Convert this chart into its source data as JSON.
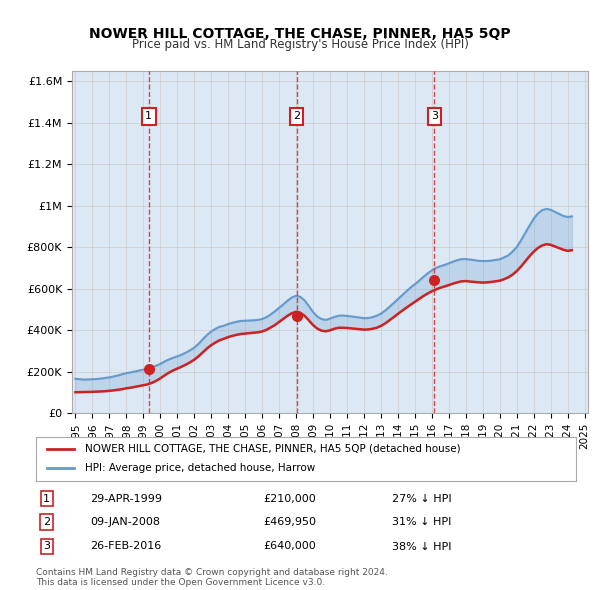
{
  "title": "NOWER HILL COTTAGE, THE CHASE, PINNER, HA5 5QP",
  "subtitle": "Price paid vs. HM Land Registry's House Price Index (HPI)",
  "background_color": "#dce9f5",
  "plot_bg_color": "#dce9f5",
  "hpi_color": "#6699cc",
  "price_color": "#cc2222",
  "transactions": [
    {
      "num": 1,
      "date_label": "29-APR-1999",
      "year": 1999.32,
      "price": 210000,
      "hpi_pct": "27% ↓ HPI"
    },
    {
      "num": 2,
      "date_label": "09-JAN-2008",
      "year": 2008.03,
      "price": 469950,
      "hpi_pct": "31% ↓ HPI"
    },
    {
      "num": 3,
      "date_label": "26-FEB-2016",
      "year": 2016.15,
      "price": 640000,
      "hpi_pct": "38% ↓ HPI"
    }
  ],
  "hpi_years": [
    1995.0,
    1995.25,
    1995.5,
    1995.75,
    1996.0,
    1996.25,
    1996.5,
    1996.75,
    1997.0,
    1997.25,
    1997.5,
    1997.75,
    1998.0,
    1998.25,
    1998.5,
    1998.75,
    1999.0,
    1999.25,
    1999.5,
    1999.75,
    2000.0,
    2000.25,
    2000.5,
    2000.75,
    2001.0,
    2001.25,
    2001.5,
    2001.75,
    2002.0,
    2002.25,
    2002.5,
    2002.75,
    2003.0,
    2003.25,
    2003.5,
    2003.75,
    2004.0,
    2004.25,
    2004.5,
    2004.75,
    2005.0,
    2005.25,
    2005.5,
    2005.75,
    2006.0,
    2006.25,
    2006.5,
    2006.75,
    2007.0,
    2007.25,
    2007.5,
    2007.75,
    2008.0,
    2008.25,
    2008.5,
    2008.75,
    2009.0,
    2009.25,
    2009.5,
    2009.75,
    2010.0,
    2010.25,
    2010.5,
    2010.75,
    2011.0,
    2011.25,
    2011.5,
    2011.75,
    2012.0,
    2012.25,
    2012.5,
    2012.75,
    2013.0,
    2013.25,
    2013.5,
    2013.75,
    2014.0,
    2014.25,
    2014.5,
    2014.75,
    2015.0,
    2015.25,
    2015.5,
    2015.75,
    2016.0,
    2016.25,
    2016.5,
    2016.75,
    2017.0,
    2017.25,
    2017.5,
    2017.75,
    2018.0,
    2018.25,
    2018.5,
    2018.75,
    2019.0,
    2019.25,
    2019.5,
    2019.75,
    2020.0,
    2020.25,
    2020.5,
    2020.75,
    2021.0,
    2021.25,
    2021.5,
    2021.75,
    2022.0,
    2022.25,
    2022.5,
    2022.75,
    2023.0,
    2023.25,
    2023.5,
    2023.75,
    2024.0,
    2024.25
  ],
  "hpi_values": [
    165000,
    163000,
    161000,
    162000,
    163000,
    164000,
    166000,
    169000,
    172000,
    176000,
    181000,
    187000,
    192000,
    196000,
    200000,
    205000,
    209000,
    213000,
    220000,
    228000,
    237000,
    248000,
    258000,
    266000,
    273000,
    281000,
    291000,
    302000,
    315000,
    333000,
    355000,
    376000,
    393000,
    406000,
    416000,
    421000,
    429000,
    435000,
    440000,
    444000,
    445000,
    446000,
    447000,
    449000,
    453000,
    462000,
    475000,
    490000,
    507000,
    524000,
    542000,
    557000,
    565000,
    560000,
    543000,
    516000,
    487000,
    465000,
    453000,
    449000,
    455000,
    463000,
    469000,
    470000,
    468000,
    466000,
    463000,
    460000,
    457000,
    458000,
    462000,
    469000,
    479000,
    494000,
    512000,
    530000,
    549000,
    568000,
    587000,
    605000,
    621000,
    638000,
    656000,
    673000,
    688000,
    700000,
    708000,
    714000,
    722000,
    730000,
    737000,
    742000,
    742000,
    740000,
    737000,
    734000,
    733000,
    733000,
    735000,
    738000,
    741000,
    750000,
    760000,
    778000,
    800000,
    832000,
    868000,
    903000,
    937000,
    962000,
    978000,
    984000,
    980000,
    970000,
    960000,
    950000,
    945000,
    948000
  ],
  "price_years": [
    1995.0,
    1995.25,
    1995.5,
    1995.75,
    1996.0,
    1996.25,
    1996.5,
    1996.75,
    1997.0,
    1997.25,
    1997.5,
    1997.75,
    1998.0,
    1998.25,
    1998.5,
    1998.75,
    1999.0,
    1999.25,
    1999.5,
    1999.75,
    2000.0,
    2000.25,
    2000.5,
    2000.75,
    2001.0,
    2001.25,
    2001.5,
    2001.75,
    2002.0,
    2002.25,
    2002.5,
    2002.75,
    2003.0,
    2003.25,
    2003.5,
    2003.75,
    2004.0,
    2004.25,
    2004.5,
    2004.75,
    2005.0,
    2005.25,
    2005.5,
    2005.75,
    2006.0,
    2006.25,
    2006.5,
    2006.75,
    2007.0,
    2007.25,
    2007.5,
    2007.75,
    2008.0,
    2008.25,
    2008.5,
    2008.75,
    2009.0,
    2009.25,
    2009.5,
    2009.75,
    2010.0,
    2010.25,
    2010.5,
    2010.75,
    2011.0,
    2011.25,
    2011.5,
    2011.75,
    2012.0,
    2012.25,
    2012.5,
    2012.75,
    2013.0,
    2013.25,
    2013.5,
    2013.75,
    2014.0,
    2014.25,
    2014.5,
    2014.75,
    2015.0,
    2015.25,
    2015.5,
    2015.75,
    2016.0,
    2016.25,
    2016.5,
    2016.75,
    2017.0,
    2017.25,
    2017.5,
    2017.75,
    2018.0,
    2018.25,
    2018.5,
    2018.75,
    2019.0,
    2019.25,
    2019.5,
    2019.75,
    2020.0,
    2020.25,
    2020.5,
    2020.75,
    2021.0,
    2021.25,
    2021.5,
    2021.75,
    2022.0,
    2022.25,
    2022.5,
    2022.75,
    2023.0,
    2023.25,
    2023.5,
    2023.75,
    2024.0,
    2024.25
  ],
  "price_values": [
    100000,
    100500,
    101000,
    101500,
    102000,
    103000,
    104000,
    105000,
    107000,
    109000,
    112000,
    115000,
    119000,
    122000,
    126000,
    130000,
    134000,
    138000,
    145000,
    155000,
    167000,
    181000,
    194000,
    205000,
    214000,
    223000,
    233000,
    244000,
    257000,
    273000,
    292000,
    311000,
    327000,
    340000,
    351000,
    358000,
    366000,
    372000,
    377000,
    381000,
    383000,
    385000,
    387000,
    389000,
    393000,
    401000,
    412000,
    424000,
    439000,
    454000,
    469000,
    481000,
    488000,
    483000,
    469000,
    447000,
    424000,
    407000,
    397000,
    394000,
    399000,
    406000,
    411000,
    411000,
    410000,
    408000,
    406000,
    404000,
    402000,
    403000,
    406000,
    411000,
    420000,
    432000,
    447000,
    462000,
    478000,
    493000,
    508000,
    522000,
    536000,
    550000,
    564000,
    576000,
    587000,
    596000,
    604000,
    610000,
    617000,
    624000,
    630000,
    635000,
    636000,
    634000,
    632000,
    630000,
    629000,
    630000,
    632000,
    635000,
    638000,
    645000,
    654000,
    667000,
    684000,
    706000,
    731000,
    756000,
    778000,
    796000,
    808000,
    814000,
    811000,
    803000,
    795000,
    787000,
    782000,
    785000
  ],
  "xlim": [
    1994.8,
    2025.2
  ],
  "ylim": [
    0,
    1650000
  ],
  "yticks": [
    0,
    200000,
    400000,
    600000,
    800000,
    1000000,
    1200000,
    1400000,
    1600000
  ],
  "ytick_labels": [
    "£0",
    "£200K",
    "£400K",
    "£600K",
    "£800K",
    "£1M",
    "£1.2M",
    "£1.4M",
    "£1.6M"
  ],
  "xtick_years": [
    1995,
    1996,
    1997,
    1998,
    1999,
    2000,
    2001,
    2002,
    2003,
    2004,
    2005,
    2006,
    2007,
    2008,
    2009,
    2010,
    2011,
    2012,
    2013,
    2014,
    2015,
    2016,
    2017,
    2018,
    2019,
    2020,
    2021,
    2022,
    2023,
    2024,
    2025
  ],
  "footnote": "Contains HM Land Registry data © Crown copyright and database right 2024.\nThis data is licensed under the Open Government Licence v3.0.",
  "legend_label_red": "NOWER HILL COTTAGE, THE CHASE, PINNER, HA5 5QP (detached house)",
  "legend_label_blue": "HPI: Average price, detached house, Harrow"
}
